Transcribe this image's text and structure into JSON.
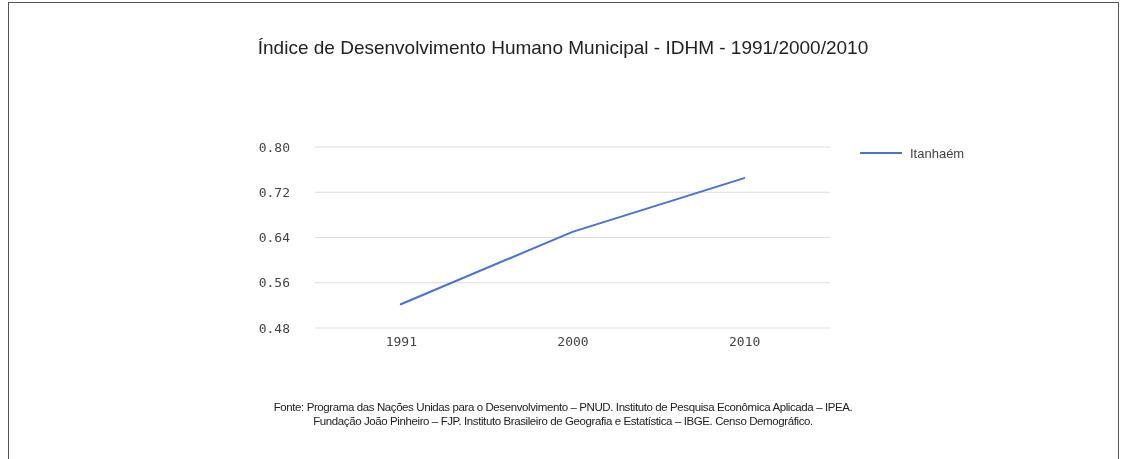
{
  "chart_data": {
    "type": "line",
    "title": "Índice de Desenvolvimento Humano Municipal - IDHM - 1991/2000/2010",
    "categories": [
      "1991",
      "2000",
      "2010"
    ],
    "series": [
      {
        "name": "Itanhaém",
        "color": "#4a72d0",
        "values": [
          0.522,
          0.65,
          0.745
        ]
      }
    ],
    "ylim": [
      0.48,
      0.8
    ],
    "yticks": [
      {
        "value": 0.48,
        "label": "0.48"
      },
      {
        "value": 0.56,
        "label": "0.56"
      },
      {
        "value": 0.64,
        "label": "0.64"
      },
      {
        "value": 0.72,
        "label": "0.72"
      },
      {
        "value": 0.8,
        "label": "0.80"
      }
    ],
    "grid": "y",
    "legend": "right",
    "marker": "none",
    "line_style": "solid",
    "annotations": [
      "Fonte: Programa das Nações Unidas para o Desenvolvimento – PNUD. Instituto de Pesquisa Econômica Aplicada – IPEA.",
      "Fundação João Pinheiro – FJP. Instituto Brasileiro de Geografia e Estatística – IBGE. Censo Demográfico."
    ]
  }
}
